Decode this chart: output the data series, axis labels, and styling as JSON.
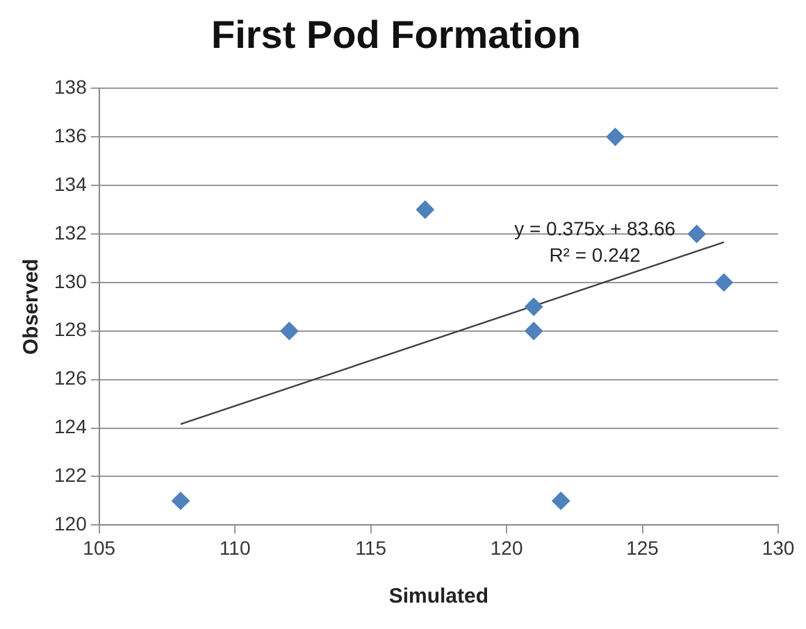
{
  "chart_data": {
    "type": "scatter",
    "title": "First Pod Formation",
    "xlabel": "Simulated",
    "ylabel": "Observed",
    "series": [
      {
        "type": "scatter",
        "color": "#4f81bd",
        "marker": "diamond",
        "x": [
          108,
          112,
          117,
          121,
          121,
          122,
          124,
          127,
          128
        ],
        "values": [
          121,
          128,
          133,
          129,
          128,
          121,
          136,
          132,
          130
        ]
      },
      {
        "type": "line",
        "color": "#404040",
        "marker": "none",
        "line_style": "solid",
        "x": [
          108,
          128
        ],
        "values": [
          124.16,
          131.66
        ]
      }
    ],
    "annotations": [
      "y = 0.375x + 83.66",
      "R² = 0.242"
    ],
    "xlim": [
      105,
      130
    ],
    "xticks": [
      105,
      110,
      115,
      120,
      125,
      130
    ],
    "ylim": [
      120,
      138
    ],
    "yticks": [
      120,
      122,
      124,
      126,
      128,
      130,
      132,
      134,
      136,
      138
    ],
    "grid": "y",
    "legend": false
  }
}
